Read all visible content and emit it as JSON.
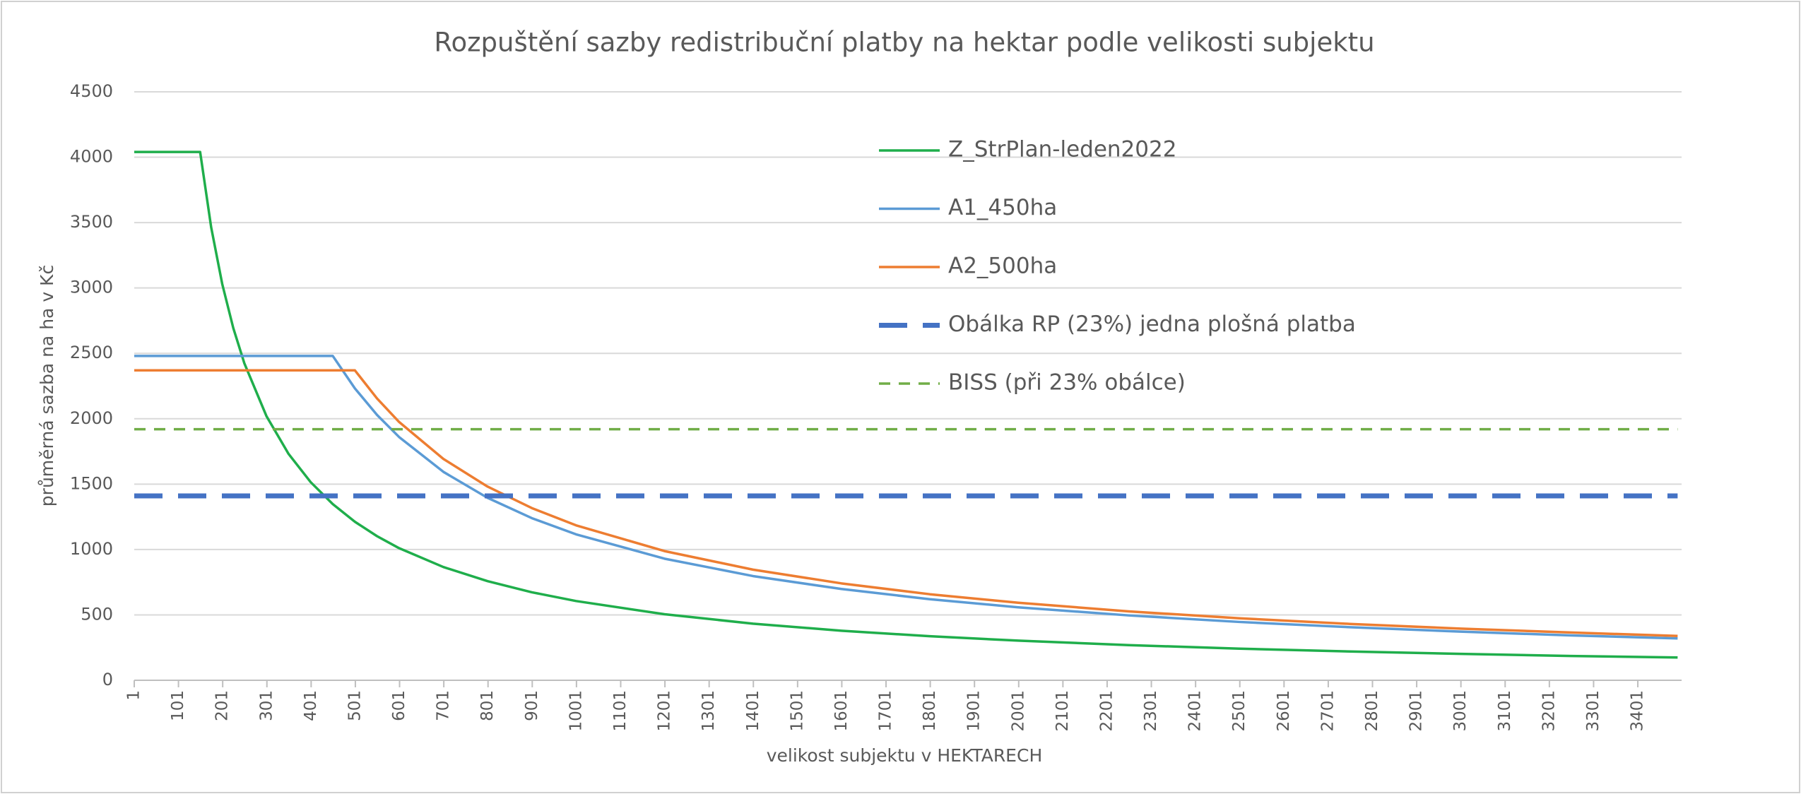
{
  "chart_data": {
    "type": "line",
    "title": "Rozpuštění sazby redistribuční platby na hektar podle velikosti subjektu",
    "x_label": "velikost subjektu v HEKTARECH",
    "y_label": "průměrná sazba na ha v Kč",
    "x": [
      1,
      150,
      175,
      200,
      225,
      250,
      300,
      350,
      400,
      450,
      500,
      550,
      600,
      700,
      800,
      900,
      1000,
      1200,
      1400,
      1600,
      1800,
      2000,
      2250,
      2500,
      2750,
      3000,
      3250,
      3491
    ],
    "series": [
      {
        "name": "Z_StrPlan-leden2022",
        "color": "#1fae4b",
        "style": "solid",
        "values": [
          4040,
          4040,
          3463,
          3030,
          2693,
          2424,
          2020,
          1731,
          1515,
          1347,
          1212,
          1102,
          1010,
          866,
          758,
          673,
          606,
          505,
          433,
          379,
          337,
          303,
          269,
          242,
          220,
          202,
          186,
          174
        ]
      },
      {
        "name": "A1_450ha",
        "color": "#5b9bd5",
        "style": "solid",
        "values": [
          2480,
          2480,
          2480,
          2480,
          2480,
          2480,
          2480,
          2480,
          2480,
          2480,
          2232,
          2029,
          1860,
          1594,
          1395,
          1240,
          1116,
          930,
          797,
          698,
          620,
          558,
          496,
          446,
          406,
          372,
          343,
          320
        ]
      },
      {
        "name": "A2_500ha",
        "color": "#ed7d31",
        "style": "solid",
        "values": [
          2370,
          2370,
          2370,
          2370,
          2370,
          2370,
          2370,
          2370,
          2370,
          2370,
          2370,
          2155,
          1975,
          1693,
          1481,
          1317,
          1185,
          988,
          846,
          741,
          658,
          593,
          527,
          474,
          431,
          395,
          365,
          339
        ]
      },
      {
        "name": "Obálka RP (23%) jedna plošná platba",
        "color": "#4472c4",
        "style": "dashed-thick",
        "values": [
          1410,
          1410,
          1410,
          1410,
          1410,
          1410,
          1410,
          1410,
          1410,
          1410,
          1410,
          1410,
          1410,
          1410,
          1410,
          1410,
          1410,
          1410,
          1410,
          1410,
          1410,
          1410,
          1410,
          1410,
          1410,
          1410,
          1410,
          1410
        ]
      },
      {
        "name": "BISS (při 23% obálce)",
        "color": "#70ad47",
        "style": "dashed",
        "values": [
          1920,
          1920,
          1920,
          1920,
          1920,
          1920,
          1920,
          1920,
          1920,
          1920,
          1920,
          1920,
          1920,
          1920,
          1920,
          1920,
          1920,
          1920,
          1920,
          1920,
          1920,
          1920,
          1920,
          1920,
          1920,
          1920,
          1920,
          1920
        ]
      }
    ],
    "xlim": [
      1,
      3500
    ],
    "xticks": [
      1,
      101,
      201,
      301,
      401,
      501,
      601,
      701,
      801,
      901,
      1001,
      1101,
      1201,
      1301,
      1401,
      1501,
      1601,
      1701,
      1801,
      1901,
      2001,
      2101,
      2201,
      2301,
      2401,
      2501,
      2601,
      2701,
      2801,
      2901,
      3001,
      3101,
      3201,
      3301,
      3401
    ],
    "ylim": [
      0,
      4500
    ],
    "yticks": [
      0,
      500,
      1000,
      1500,
      2000,
      2500,
      3000,
      3500,
      4000,
      4500
    ],
    "grid": true,
    "legend": "top-center"
  }
}
